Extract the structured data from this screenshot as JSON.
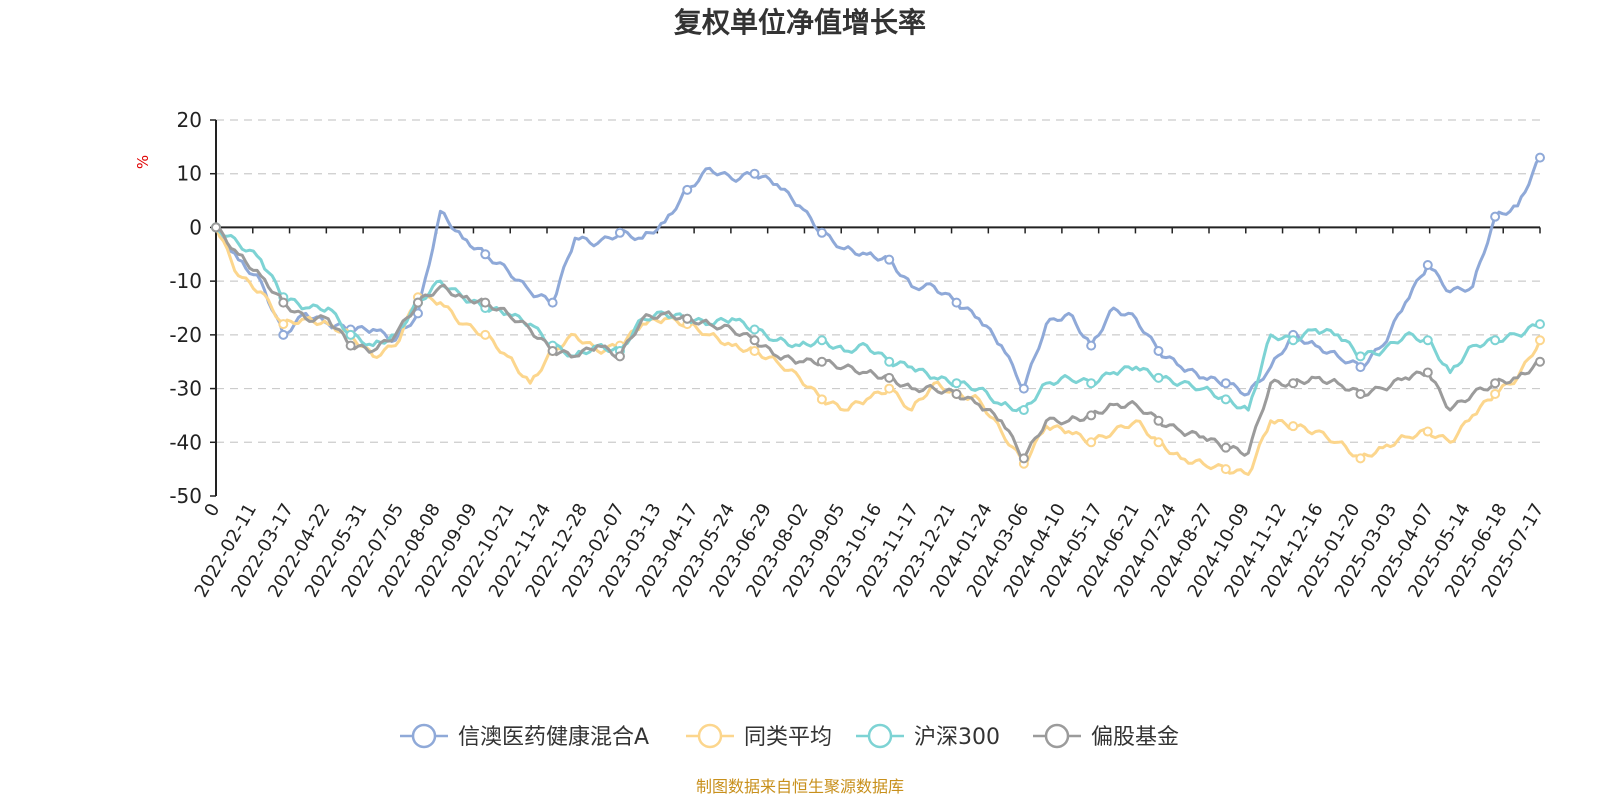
{
  "chart_data": {
    "type": "line",
    "title": "复权单位净值增长率",
    "ylabel": "%",
    "ylim": [
      -50,
      20
    ],
    "yticks": [
      "20",
      "10",
      "0",
      "-10",
      "-20",
      "-30",
      "-40",
      "-50"
    ],
    "x_tick_labels": [
      "0",
      "2022-02-11",
      "2022-03-17",
      "2022-04-22",
      "2022-05-31",
      "2022-07-05",
      "2022-08-08",
      "2022-09-09",
      "2022-10-21",
      "2022-11-24",
      "2022-12-28",
      "2023-02-07",
      "2023-03-13",
      "2023-04-17",
      "2023-05-24",
      "2023-06-29",
      "2023-08-02",
      "2023-09-05",
      "2023-10-16",
      "2023-11-17",
      "2023-12-21",
      "2024-01-24",
      "2024-03-06",
      "2024-04-10",
      "2024-05-17",
      "2024-06-21",
      "2024-07-24",
      "2024-08-27",
      "2024-10-09",
      "2024-11-12",
      "2024-12-16",
      "2025-01-20",
      "2025-03-03",
      "2025-04-07",
      "2025-05-14",
      "2025-06-18",
      "2025-07-17"
    ],
    "grid": true,
    "legend_position": "bottom",
    "series": [
      {
        "name": "信澳医药健康混合A",
        "color": "#8fa9d8",
        "values": [
          0,
          -6,
          -10,
          -20,
          -16,
          -18,
          -19,
          -19,
          -21,
          -16,
          3,
          -2,
          -5,
          -8,
          -12,
          -14,
          -2,
          -3,
          -1,
          -2,
          1,
          7,
          11,
          9,
          10,
          8,
          4,
          -1,
          -4,
          -5,
          -6,
          -11,
          -11,
          -14,
          -17,
          -22,
          -30,
          -18,
          -16,
          -22,
          -15,
          -17,
          -23,
          -26,
          -28,
          -29,
          -31,
          -26,
          -20,
          -22,
          -24,
          -26,
          -22,
          -14,
          -7,
          -12,
          -11,
          2,
          4,
          13
        ]
      },
      {
        "name": "同类平均",
        "color": "#fcd68d",
        "values": [
          0,
          -9,
          -12,
          -18,
          -17,
          -18,
          -20,
          -24,
          -22,
          -13,
          -14,
          -18,
          -20,
          -24,
          -29,
          -23,
          -20,
          -23,
          -22,
          -18,
          -17,
          -18,
          -20,
          -22,
          -23,
          -25,
          -28,
          -32,
          -34,
          -32,
          -30,
          -34,
          -29,
          -31,
          -32,
          -38,
          -44,
          -37,
          -38,
          -40,
          -38,
          -36,
          -40,
          -43,
          -44,
          -45,
          -46,
          -36,
          -37,
          -38,
          -40,
          -43,
          -41,
          -39,
          -38,
          -40,
          -35,
          -31,
          -28,
          -21
        ]
      },
      {
        "name": "沪深300",
        "color": "#7dd3d4",
        "values": [
          0,
          -3,
          -6,
          -13,
          -15,
          -15,
          -20,
          -22,
          -20,
          -14,
          -10,
          -13,
          -15,
          -16,
          -18,
          -22,
          -24,
          -22,
          -23,
          -17,
          -16,
          -17,
          -18,
          -17,
          -19,
          -21,
          -22,
          -21,
          -23,
          -22,
          -25,
          -26,
          -28,
          -29,
          -30,
          -33,
          -34,
          -29,
          -28,
          -29,
          -27,
          -26,
          -28,
          -29,
          -30,
          -32,
          -34,
          -20,
          -21,
          -19,
          -20,
          -24,
          -23,
          -20,
          -21,
          -27,
          -22,
          -21,
          -20,
          -18
        ]
      },
      {
        "name": "偏股基金",
        "color": "#9b9b9b",
        "values": [
          0,
          -5,
          -9,
          -14,
          -17,
          -17,
          -22,
          -23,
          -20,
          -14,
          -11,
          -13,
          -14,
          -16,
          -19,
          -23,
          -24,
          -22,
          -24,
          -17,
          -16,
          -17,
          -18,
          -19,
          -21,
          -24,
          -25,
          -25,
          -26,
          -27,
          -28,
          -30,
          -30,
          -31,
          -33,
          -36,
          -43,
          -36,
          -36,
          -35,
          -33,
          -33,
          -36,
          -38,
          -39,
          -41,
          -42,
          -29,
          -29,
          -28,
          -29,
          -31,
          -30,
          -28,
          -27,
          -34,
          -31,
          -29,
          -28,
          -25
        ]
      }
    ]
  },
  "footer": {
    "source": "制图数据来自恒生聚源数据库"
  }
}
